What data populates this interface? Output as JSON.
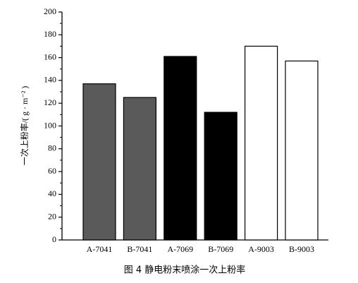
{
  "chart_data": {
    "type": "bar",
    "caption": "图 4 静电粉末喷涂一次上粉率",
    "y_label": "一次上粉率/( g · m⁻² )",
    "categories": [
      "A-7041",
      "B-7041",
      "A-7069",
      "B-7069",
      "A-9003",
      "B-9003"
    ],
    "values": [
      137,
      125,
      161,
      112,
      170,
      157
    ],
    "colors": [
      "#5a5a5a",
      "#5a5a5a",
      "#000000",
      "#000000",
      "#ffffff",
      "#ffffff"
    ],
    "ylim": [
      0,
      200
    ],
    "yticks": [
      0,
      20,
      40,
      60,
      80,
      100,
      120,
      140,
      160,
      180,
      200
    ],
    "grid": false
  }
}
